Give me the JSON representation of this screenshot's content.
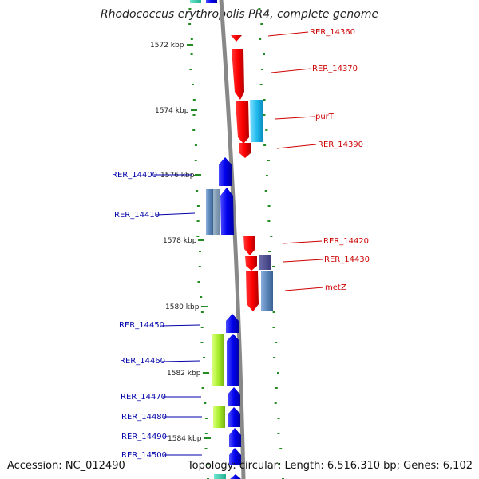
{
  "title": "Rhodococcus erythropolis PR4, complete genome",
  "accession": "Accession: NC_012490",
  "topology": "Topology: circular; Length: 6,516,310 bp; Genes: 6,102",
  "scale_ticks": [
    "1572 kbp",
    "1574 kbp",
    "1576 kbp",
    "1578 kbp",
    "1580 kbp",
    "1582 kbp",
    "1584 kbp"
  ],
  "genes_right": [
    {
      "name": "RER_14360",
      "color": "#cc0000"
    },
    {
      "name": "RER_14370",
      "color": "#cc0000"
    },
    {
      "name": "purT",
      "color": "#cc0000"
    },
    {
      "name": "RER_14390",
      "color": "#cc0000"
    },
    {
      "name": "RER_14420",
      "color": "#cc0000"
    },
    {
      "name": "RER_14430",
      "color": "#cc0000"
    },
    {
      "name": "metZ",
      "color": "#cc0000"
    }
  ],
  "genes_left": [
    {
      "name": "RER_14400",
      "color": "#0000aa"
    },
    {
      "name": "RER_14410",
      "color": "#0000aa"
    },
    {
      "name": "RER_14450",
      "color": "#0000aa"
    },
    {
      "name": "RER_14460",
      "color": "#0000aa"
    },
    {
      "name": "RER_14470",
      "color": "#0000aa"
    },
    {
      "name": "RER_14480",
      "color": "#0000aa"
    },
    {
      "name": "RER_14490",
      "color": "#0000aa"
    },
    {
      "name": "RER_14500",
      "color": "#0000aa"
    }
  ],
  "colors": {
    "forward_strand": "#ff0000",
    "reverse_strand": "#0000ee",
    "backbone": "#888888",
    "gc_dots": "#228b22"
  }
}
